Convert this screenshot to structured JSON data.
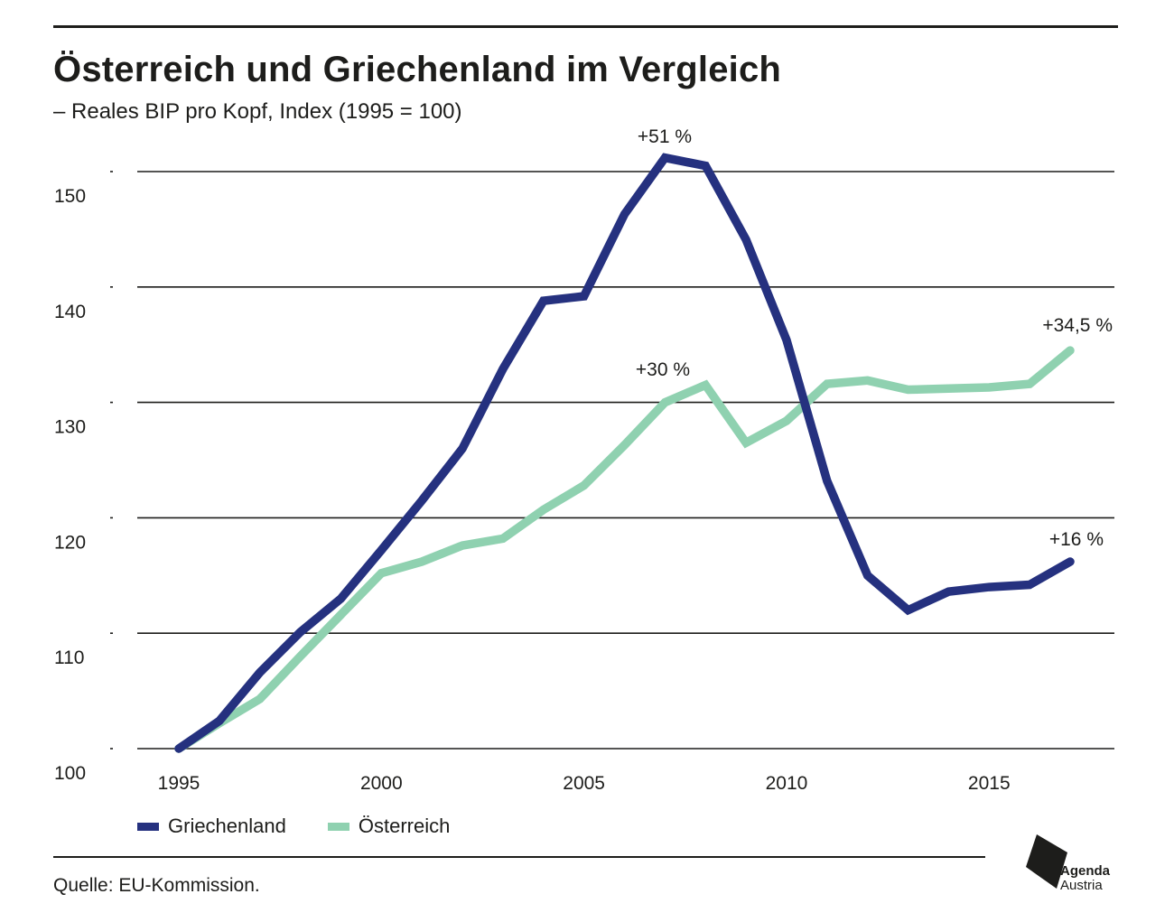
{
  "header": {
    "title": "Österreich und Griechenland im Vergleich",
    "subtitle": "– Reales BIP pro Kopf, Index (1995 = 100)"
  },
  "chart_data": {
    "type": "line",
    "title": "Österreich und Griechenland im Vergleich",
    "subtitle": "– Reales BIP pro Kopf, Index (1995 = 100)",
    "xlabel": "",
    "ylabel": "",
    "x": [
      1995,
      1996,
      1997,
      1998,
      1999,
      2000,
      2001,
      2002,
      2003,
      2004,
      2005,
      2006,
      2007,
      2008,
      2009,
      2010,
      2011,
      2012,
      2013,
      2014,
      2015,
      2016,
      2017
    ],
    "xticks": [
      1995,
      2000,
      2005,
      2010,
      2015
    ],
    "yticks": [
      100,
      110,
      120,
      130,
      140,
      150
    ],
    "xlim": [
      1995,
      2017
    ],
    "ylim": [
      100,
      150
    ],
    "grid": true,
    "legend_position": "bottom-left",
    "series": [
      {
        "name": "Griechenland",
        "color": "#25317f",
        "values": [
          100,
          102.4,
          106.6,
          110.1,
          113.0,
          117.2,
          121.5,
          126.0,
          132.9,
          138.8,
          139.2,
          146.3,
          151.2,
          150.5,
          144.1,
          135.4,
          123.2,
          115.0,
          112.0,
          113.6,
          114.0,
          114.2,
          116.2
        ]
      },
      {
        "name": "Österreich",
        "color": "#8fd1b0",
        "values": [
          100,
          102.2,
          104.3,
          108.0,
          111.6,
          115.2,
          116.2,
          117.6,
          118.2,
          120.7,
          122.8,
          126.3,
          130.0,
          131.5,
          126.5,
          128.4,
          131.6,
          131.9,
          131.1,
          131.2,
          131.3,
          131.6,
          134.5
        ]
      }
    ],
    "annotations": [
      {
        "text": "+51 %",
        "series": "Griechenland",
        "x": 2007,
        "y": 151.2
      },
      {
        "text": "+30 %",
        "series": "Österreich",
        "x": 2007,
        "y": 130.0
      },
      {
        "text": "+34,5 %",
        "series": "Österreich",
        "x": 2017,
        "y": 134.5
      },
      {
        "text": "+16 %",
        "series": "Griechenland",
        "x": 2017,
        "y": 116.2
      }
    ]
  },
  "legend": {
    "items": [
      {
        "label": "Griechenland",
        "color": "#25317f"
      },
      {
        "label": "Österreich",
        "color": "#8fd1b0"
      }
    ]
  },
  "footer": {
    "source": "Quelle: EU-Kommission.",
    "logo_line1": "Agenda",
    "logo_line2": "Austria"
  }
}
